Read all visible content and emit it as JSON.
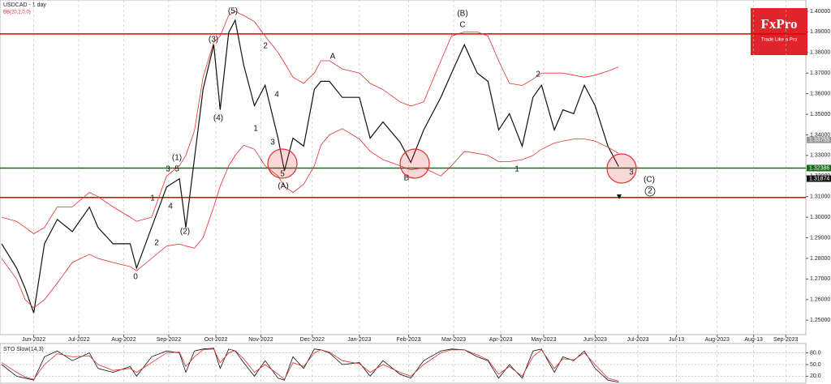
{
  "chart_data": [
    {
      "type": "line",
      "title": "USDCAD - 1 day",
      "subtitle": "BB(20,2,0,0)",
      "brand": {
        "name": "FxPro",
        "tagline": "Trade Like a Pro"
      },
      "x": [
        0,
        7,
        11,
        15,
        20,
        26,
        33,
        41,
        45,
        52,
        60,
        63,
        70,
        77,
        83,
        86,
        90,
        94,
        99,
        102,
        106,
        109,
        113,
        118,
        123,
        129,
        132,
        136,
        141,
        146,
        149,
        153,
        159,
        167,
        172,
        178,
        186,
        191,
        197,
        205,
        210,
        216,
        222,
        227,
        232,
        237,
        243,
        248,
        252,
        258,
        262,
        267,
        272,
        277,
        283,
        288
      ],
      "series": [
        {
          "color": "#111111",
          "values": [
            1.2871,
            1.2753,
            1.2654,
            1.2535,
            1.2871,
            1.2989,
            1.293,
            1.3049,
            1.295,
            1.2871,
            1.2871,
            1.2753,
            1.295,
            1.3147,
            1.3187,
            1.295,
            1.3285,
            1.3621,
            1.3838,
            1.3522,
            1.3897,
            1.3957,
            1.3739,
            1.3542,
            1.3641,
            1.3384,
            1.3226,
            1.3384,
            1.3345,
            1.3621,
            1.366,
            1.366,
            1.3582,
            1.3582,
            1.3384,
            1.3463,
            1.3364,
            1.3266,
            1.3424,
            1.3582,
            1.37,
            1.3838,
            1.37,
            1.366,
            1.3424,
            1.3503,
            1.3345,
            1.3582,
            1.3641,
            1.3424,
            1.3522,
            1.3503,
            1.3641,
            1.3542,
            1.3345,
            1.3246
          ]
        },
        {
          "color": "#e03030",
          "values": [
            1.3,
            1.298,
            1.295,
            1.292,
            1.295,
            1.305,
            1.305,
            1.312,
            1.31,
            1.305,
            1.3,
            1.298,
            1.3,
            1.32,
            1.325,
            1.33,
            1.342,
            1.368,
            1.385,
            1.388,
            1.398,
            1.4,
            1.398,
            1.395,
            1.388,
            1.38,
            1.375,
            1.368,
            1.365,
            1.37,
            1.376,
            1.376,
            1.372,
            1.37,
            1.365,
            1.362,
            1.356,
            1.354,
            1.356,
            1.376,
            1.388,
            1.39,
            1.39,
            1.388,
            1.376,
            1.365,
            1.364,
            1.367,
            1.37,
            1.37,
            1.37,
            1.369,
            1.368,
            1.369,
            1.371,
            1.373
          ]
        },
        {
          "color": "#e03030",
          "values": [
            1.28,
            1.27,
            1.26,
            1.256,
            1.26,
            1.268,
            1.278,
            1.282,
            1.28,
            1.278,
            1.276,
            1.274,
            1.28,
            1.286,
            1.287,
            1.286,
            1.285,
            1.29,
            1.305,
            1.315,
            1.325,
            1.33,
            1.335,
            1.333,
            1.325,
            1.32,
            1.315,
            1.312,
            1.316,
            1.325,
            1.335,
            1.34,
            1.343,
            1.338,
            1.332,
            1.328,
            1.325,
            1.323,
            1.324,
            1.32,
            1.325,
            1.332,
            1.331,
            1.33,
            1.327,
            1.327,
            1.328,
            1.33,
            1.333,
            1.336,
            1.337,
            1.338,
            1.338,
            1.337,
            1.334,
            1.331
          ]
        }
      ],
      "levels": [
        {
          "value": 1.389,
          "color": "#e00000"
        },
        {
          "value": 1.32386,
          "color": "#1a6b1a"
        },
        {
          "value": 1.3096,
          "color": "#e00000"
        }
      ],
      "price_labels": [
        {
          "value": 1.33755,
          "label": "1.33755",
          "color": "#999999"
        },
        {
          "value": 1.32386,
          "label": "1.32386",
          "color": "#1a6b1a"
        },
        {
          "value": 1.31874,
          "label": "1.31874",
          "color": "#111111"
        }
      ],
      "annotations": [
        "(5)",
        "(3)",
        "(4)",
        "(1)",
        "3",
        "5",
        "4",
        "(2)",
        "1",
        "2",
        "0",
        "2",
        "1",
        "4",
        "3",
        "5",
        "(A)",
        "A",
        "(B)",
        "C",
        "B",
        "1",
        "2",
        "3",
        "(C)",
        "2"
      ],
      "xlim": [
        0,
        375
      ],
      "ylim": [
        1.243,
        1.4055
      ],
      "xticks": [
        {
          "value": 15,
          "label": "Jun-2022"
        },
        {
          "value": 36,
          "label": "Jul-2022"
        },
        {
          "value": 57,
          "label": "Aug-2022"
        },
        {
          "value": 78,
          "label": "Sep-2022"
        },
        {
          "value": 100,
          "label": "Oct-2022"
        },
        {
          "value": 121,
          "label": "Nov-2022"
        },
        {
          "value": 145,
          "label": "Dec-2022"
        },
        {
          "value": 167,
          "label": "Jan-2023"
        },
        {
          "value": 190,
          "label": "Feb-2023"
        },
        {
          "value": 211,
          "label": "Mar-2023"
        },
        {
          "value": 233,
          "label": "Apr-2023"
        },
        {
          "value": 253,
          "label": "May-2023"
        },
        {
          "value": 277,
          "label": "Jun-2023"
        },
        {
          "value": 297,
          "label": "Jul-2023"
        },
        {
          "value": 315,
          "label": "Jul-13"
        },
        {
          "value": 334,
          "label": "Aug-2023"
        },
        {
          "value": 351,
          "label": "Aug-13"
        },
        {
          "value": 366,
          "label": "Sep-2023"
        }
      ],
      "yticks": [
        {
          "value": 1.25,
          "label": "1.25000"
        },
        {
          "value": 1.26,
          "label": "1.26000"
        },
        {
          "value": 1.27,
          "label": "1.27000"
        },
        {
          "value": 1.28,
          "label": "1.28000"
        },
        {
          "value": 1.29,
          "label": "1.29000"
        },
        {
          "value": 1.3,
          "label": "1.30000"
        },
        {
          "value": 1.31,
          "label": "1.31000"
        },
        {
          "value": 1.32,
          "label": "1.32000"
        },
        {
          "value": 1.33,
          "label": "1.33000"
        },
        {
          "value": 1.34,
          "label": "1.34000"
        },
        {
          "value": 1.35,
          "label": "1.35000"
        },
        {
          "value": 1.36,
          "label": "1.36000"
        },
        {
          "value": 1.37,
          "label": "1.37000"
        },
        {
          "value": 1.38,
          "label": "1.38000"
        },
        {
          "value": 1.39,
          "label": "1.39000"
        },
        {
          "value": 1.4,
          "label": "1.40000"
        }
      ],
      "grid": true
    },
    {
      "type": "line",
      "title": "STO Slow(14,3)",
      "x": [
        0,
        7,
        11,
        15,
        20,
        26,
        33,
        41,
        45,
        52,
        60,
        63,
        70,
        77,
        83,
        86,
        90,
        94,
        99,
        102,
        106,
        109,
        113,
        118,
        123,
        129,
        132,
        136,
        141,
        146,
        149,
        153,
        159,
        167,
        172,
        178,
        186,
        191,
        197,
        205,
        210,
        216,
        222,
        227,
        232,
        237,
        243,
        248,
        252,
        258,
        262,
        267,
        272,
        277,
        283,
        288
      ],
      "series": [
        {
          "color": "#111111",
          "values": [
            50,
            20,
            15,
            10,
            70,
            85,
            60,
            80,
            40,
            30,
            45,
            20,
            70,
            85,
            80,
            30,
            85,
            90,
            92,
            40,
            90,
            85,
            55,
            20,
            60,
            15,
            10,
            70,
            40,
            90,
            88,
            80,
            50,
            55,
            20,
            60,
            25,
            15,
            60,
            85,
            90,
            88,
            70,
            60,
            15,
            50,
            15,
            85,
            90,
            30,
            70,
            60,
            85,
            40,
            10,
            5
          ]
        },
        {
          "color": "#e03030",
          "values": [
            55,
            30,
            18,
            12,
            50,
            78,
            70,
            72,
            50,
            35,
            40,
            30,
            55,
            80,
            82,
            45,
            70,
            88,
            90,
            55,
            80,
            86,
            65,
            30,
            50,
            25,
            12,
            55,
            45,
            80,
            88,
            82,
            60,
            52,
            30,
            50,
            30,
            20,
            50,
            80,
            88,
            88,
            75,
            62,
            25,
            45,
            20,
            70,
            88,
            40,
            65,
            62,
            80,
            50,
            15,
            8
          ]
        }
      ],
      "xlim": [
        0,
        375
      ],
      "ylim": [
        0,
        100
      ],
      "yticks": [
        {
          "value": 80,
          "label": "80.0"
        },
        {
          "value": 50,
          "label": "50.0"
        },
        {
          "value": 20,
          "label": "20.0"
        }
      ]
    }
  ]
}
